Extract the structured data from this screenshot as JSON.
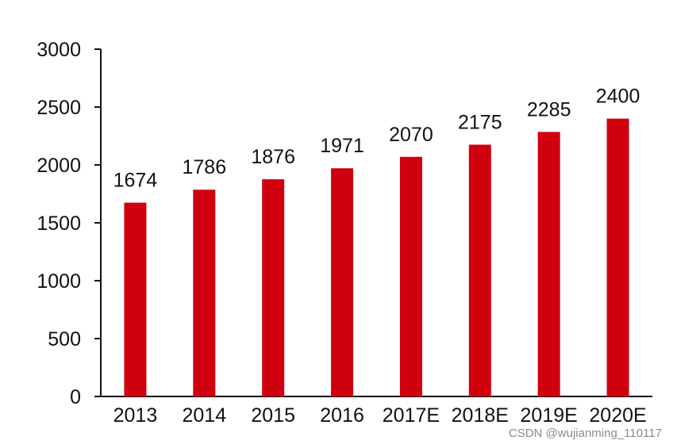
{
  "chart_data": {
    "type": "bar",
    "title": "",
    "xlabel": "",
    "ylabel": "",
    "categories": [
      "2013",
      "2014",
      "2015",
      "2016",
      "2017E",
      "2018E",
      "2019E",
      "2020E"
    ],
    "values": [
      1674,
      1786,
      1876,
      1971,
      2070,
      2175,
      2285,
      2400
    ],
    "ylim": [
      0,
      3000
    ],
    "yticks": [
      0,
      500,
      1000,
      1500,
      2000,
      2500,
      3000
    ],
    "grid": false,
    "legend": "none",
    "bar_color": "#d0000f",
    "data_labels": true
  },
  "watermark": "CSDN @wujianming_110117"
}
